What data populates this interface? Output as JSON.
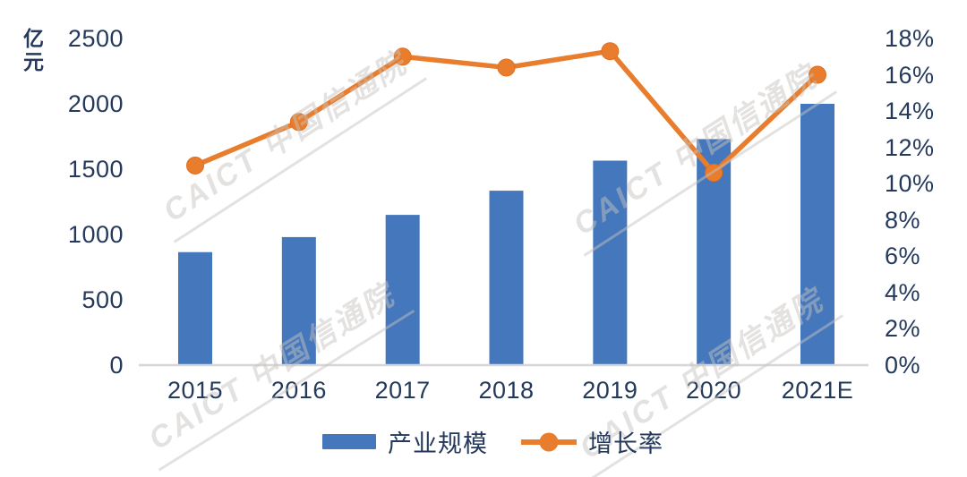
{
  "chart_data": {
    "type": "bar+line combo",
    "title": "",
    "categories": [
      "2015",
      "2016",
      "2017",
      "2018",
      "2019",
      "2020",
      "2021E"
    ],
    "series": [
      {
        "name": "产业规模",
        "type": "bar",
        "axis": "left",
        "unit": "亿元",
        "color": "#4577BC",
        "values": [
          865,
          980,
          1150,
          1335,
          1565,
          1730,
          2000
        ]
      },
      {
        "name": "增长率",
        "type": "line",
        "axis": "right",
        "unit": "%",
        "color": "#E87D2E",
        "values": [
          11.0,
          13.4,
          17.0,
          16.4,
          17.3,
          10.6,
          16.0
        ]
      }
    ],
    "left_axis": {
      "unit": "亿元",
      "min": 0,
      "max": 2500,
      "ticks": [
        "2500",
        "2000",
        "1500",
        "1000",
        "500",
        "0"
      ]
    },
    "right_axis": {
      "min": 0,
      "max": 18,
      "ticks": [
        "18%",
        "16%",
        "14%",
        "12%",
        "10%",
        "8%",
        "6%",
        "4%",
        "2%",
        "0%"
      ]
    },
    "grid": false,
    "legend_position": "bottom-center"
  },
  "watermark": {
    "text": "CAICT 中国信通院",
    "color": "#c7c4bf"
  },
  "colors": {
    "bar": "#4577BC",
    "line": "#E87D2E",
    "text": "#24395B",
    "axis_line": "#D6D6D6",
    "background": "#ffffff"
  }
}
